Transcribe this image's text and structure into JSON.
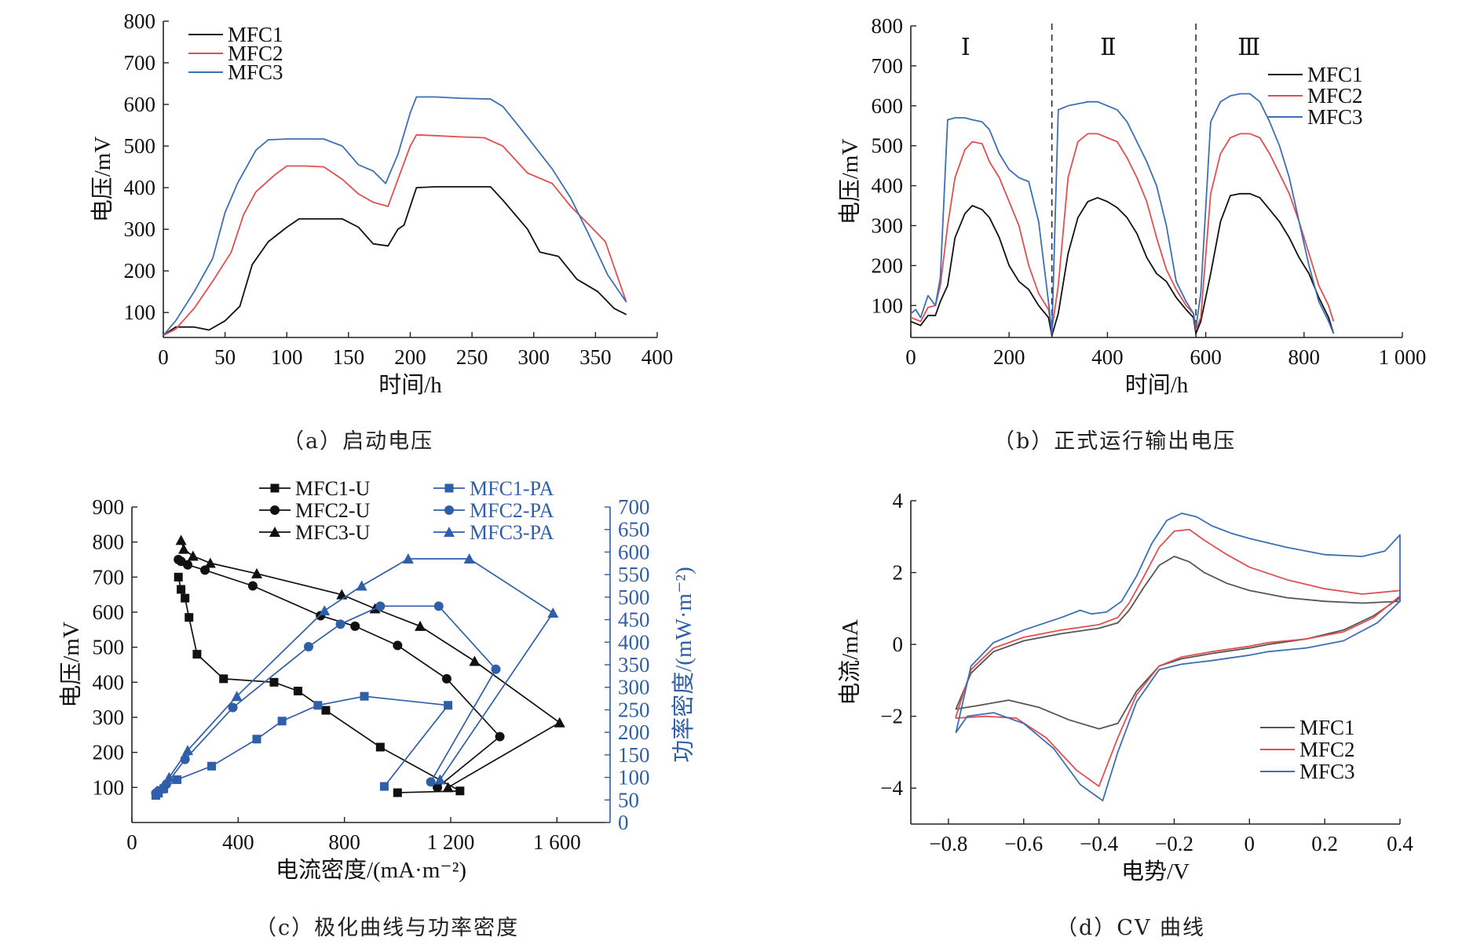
{
  "captions": {
    "a": "（a）启动电压",
    "b": "（b）正式运行输出电压",
    "c": "（c）极化曲线与功率密度",
    "d": "（d）CV 曲线"
  },
  "colors": {
    "MFC1": "#111111",
    "MFC2": "#e05050",
    "MFC3": "#3d6fb5",
    "blue_axis": "#2f5fa8",
    "cv_MFC1": "#555555"
  },
  "chart_data": [
    {
      "id": "a",
      "type": "line",
      "xlabel": "时间/h",
      "ylabel": "电压/mV",
      "xlim": [
        0,
        400
      ],
      "ylim": [
        40,
        800
      ],
      "xticks": [
        0,
        50,
        100,
        150,
        200,
        250,
        300,
        350,
        400
      ],
      "yticks": [
        100,
        200,
        300,
        400,
        500,
        600,
        700,
        800
      ],
      "legend_position": "top-left",
      "series": [
        {
          "name": "MFC1",
          "x": [
            0,
            10,
            25,
            37,
            50,
            62,
            72,
            85,
            100,
            110,
            125,
            145,
            158,
            170,
            182,
            190,
            195,
            205,
            220,
            240,
            265,
            275,
            295,
            305,
            320,
            335,
            352,
            365,
            375
          ],
          "y": [
            45,
            65,
            65,
            58,
            80,
            115,
            215,
            270,
            305,
            325,
            325,
            325,
            305,
            265,
            260,
            300,
            310,
            400,
            402,
            402,
            402,
            370,
            300,
            245,
            235,
            180,
            150,
            110,
            95
          ]
        },
        {
          "name": "MFC2",
          "x": [
            0,
            10,
            25,
            40,
            55,
            65,
            75,
            90,
            100,
            115,
            130,
            145,
            158,
            170,
            182,
            190,
            200,
            205,
            220,
            240,
            260,
            275,
            295,
            315,
            330,
            345,
            358,
            375
          ],
          "y": [
            45,
            60,
            110,
            175,
            245,
            335,
            390,
            430,
            452,
            452,
            450,
            420,
            385,
            365,
            355,
            420,
            500,
            527,
            525,
            522,
            520,
            500,
            435,
            410,
            355,
            310,
            270,
            125
          ]
        },
        {
          "name": "MFC3",
          "x": [
            0,
            10,
            25,
            40,
            50,
            60,
            75,
            85,
            100,
            115,
            130,
            145,
            158,
            170,
            180,
            190,
            200,
            205,
            220,
            240,
            265,
            275,
            290,
            315,
            330,
            345,
            360,
            375
          ],
          "y": [
            45,
            80,
            150,
            230,
            340,
            410,
            490,
            515,
            517,
            517,
            517,
            500,
            455,
            440,
            410,
            480,
            580,
            618,
            618,
            615,
            613,
            595,
            540,
            445,
            375,
            285,
            190,
            125
          ]
        }
      ]
    },
    {
      "id": "b",
      "type": "line",
      "xlabel": "时间/h",
      "ylabel": "电压/mV",
      "xlim": [
        0,
        1000
      ],
      "ylim": [
        20,
        800
      ],
      "xticks": [
        0,
        200,
        400,
        600,
        800,
        1000
      ],
      "xtick_labels": [
        "0",
        "200",
        "400",
        "600",
        "800",
        "1 000"
      ],
      "yticks": [
        100,
        200,
        300,
        400,
        500,
        600,
        700,
        800
      ],
      "phase_labels": [
        "Ⅰ",
        "Ⅱ",
        "Ⅲ"
      ],
      "phase_boundaries": [
        287,
        580
      ],
      "legend_position": "top-right",
      "series": [
        {
          "name": "MFC1",
          "x": [
            0,
            10,
            20,
            35,
            50,
            60,
            75,
            90,
            110,
            125,
            145,
            160,
            180,
            200,
            220,
            240,
            260,
            280,
            287,
            300,
            320,
            340,
            360,
            380,
            400,
            420,
            440,
            460,
            480,
            500,
            520,
            540,
            560,
            575,
            580,
            590,
            610,
            630,
            650,
            670,
            690,
            710,
            730,
            750,
            770,
            790,
            810,
            830,
            850,
            860
          ],
          "y": [
            60,
            55,
            50,
            75,
            75,
            110,
            150,
            270,
            330,
            350,
            340,
            320,
            270,
            200,
            160,
            140,
            100,
            70,
            25,
            80,
            230,
            320,
            360,
            370,
            360,
            345,
            320,
            280,
            220,
            180,
            160,
            120,
            90,
            70,
            30,
            60,
            180,
            310,
            375,
            380,
            380,
            370,
            340,
            310,
            270,
            220,
            180,
            120,
            70,
            30
          ]
        },
        {
          "name": "MFC2",
          "x": [
            0,
            10,
            20,
            35,
            50,
            60,
            75,
            90,
            110,
            125,
            145,
            160,
            180,
            200,
            220,
            240,
            260,
            280,
            287,
            300,
            320,
            340,
            360,
            380,
            400,
            420,
            440,
            460,
            480,
            500,
            520,
            540,
            560,
            575,
            580,
            590,
            610,
            630,
            650,
            670,
            690,
            710,
            730,
            750,
            770,
            790,
            810,
            830,
            850,
            860
          ],
          "y": [
            70,
            65,
            60,
            95,
            100,
            150,
            300,
            420,
            490,
            510,
            505,
            460,
            420,
            360,
            300,
            200,
            130,
            90,
            40,
            150,
            420,
            510,
            530,
            530,
            520,
            510,
            470,
            420,
            360,
            270,
            190,
            140,
            100,
            80,
            40,
            70,
            380,
            480,
            520,
            530,
            530,
            520,
            480,
            430,
            380,
            310,
            230,
            150,
            100,
            60
          ]
        },
        {
          "name": "MFC3",
          "x": [
            0,
            10,
            20,
            35,
            50,
            60,
            75,
            90,
            110,
            125,
            145,
            160,
            180,
            200,
            220,
            240,
            260,
            280,
            287,
            300,
            320,
            340,
            360,
            380,
            400,
            420,
            440,
            460,
            480,
            500,
            520,
            540,
            560,
            575,
            580,
            590,
            610,
            630,
            650,
            670,
            690,
            710,
            730,
            750,
            770,
            790,
            810,
            830,
            850,
            860
          ],
          "y": [
            80,
            90,
            70,
            125,
            100,
            170,
            565,
            570,
            570,
            565,
            560,
            540,
            480,
            440,
            420,
            410,
            310,
            110,
            30,
            590,
            600,
            605,
            610,
            610,
            600,
            590,
            560,
            510,
            460,
            400,
            300,
            160,
            110,
            80,
            45,
            130,
            560,
            610,
            625,
            630,
            630,
            610,
            560,
            500,
            420,
            310,
            200,
            110,
            60,
            30
          ]
        }
      ]
    },
    {
      "id": "c",
      "type": "scatter",
      "xlabel": "电流密度/(mA·m⁻²)",
      "ylabel": "电压/mV",
      "y2label": "功率密度/(mW·m⁻²)",
      "xlim": [
        0,
        1800
      ],
      "ylim": [
        0,
        900
      ],
      "y2lim": [
        0,
        700
      ],
      "xticks": [
        0,
        400,
        800,
        1200,
        1600
      ],
      "xtick_labels": [
        "0",
        "400",
        "800",
        "1 200",
        "1 600"
      ],
      "yticks": [
        100,
        200,
        300,
        400,
        500,
        600,
        700,
        800,
        900
      ],
      "y2ticks": [
        0,
        50,
        100,
        150,
        200,
        250,
        300,
        350,
        400,
        450,
        500,
        550,
        600,
        650,
        700
      ],
      "legend_position": "top",
      "series": [
        {
          "name": "MFC1-U",
          "axis": "left",
          "marker": "square",
          "x": [
            175,
            185,
            200,
            215,
            245,
            345,
            535,
            625,
            730,
            935,
            1235,
            1000
          ],
          "y": [
            700,
            665,
            640,
            585,
            480,
            410,
            400,
            375,
            320,
            215,
            90,
            85
          ]
        },
        {
          "name": "MFC2-U",
          "axis": "left",
          "marker": "circle",
          "x": [
            175,
            185,
            210,
            275,
            455,
            710,
            840,
            1000,
            1185,
            1385,
            1150
          ],
          "y": [
            750,
            745,
            735,
            720,
            675,
            590,
            560,
            505,
            410,
            245,
            100
          ]
        },
        {
          "name": "MFC3-U",
          "axis": "left",
          "marker": "triangle",
          "x": [
            185,
            195,
            230,
            295,
            470,
            790,
            915,
            1085,
            1290,
            1610,
            1190
          ],
          "y": [
            805,
            780,
            760,
            740,
            710,
            650,
            610,
            560,
            460,
            285,
            100
          ]
        },
        {
          "name": "MFC1-PA",
          "axis": "right",
          "marker": "square",
          "x": [
            90,
            100,
            120,
            170,
            300,
            470,
            565,
            700,
            875,
            1190,
            950
          ],
          "y": [
            60,
            65,
            75,
            95,
            125,
            185,
            225,
            260,
            280,
            260,
            80
          ]
        },
        {
          "name": "MFC2-PA",
          "axis": "right",
          "marker": "circle",
          "x": [
            90,
            100,
            130,
            200,
            380,
            665,
            785,
            935,
            1155,
            1370,
            1125
          ],
          "y": [
            65,
            70,
            85,
            140,
            255,
            390,
            440,
            480,
            480,
            340,
            90
          ]
        },
        {
          "name": "MFC3-PA",
          "axis": "right",
          "marker": "triangle",
          "x": [
            95,
            110,
            140,
            210,
            395,
            725,
            865,
            1040,
            1270,
            1585,
            1160
          ],
          "y": [
            70,
            75,
            100,
            160,
            280,
            470,
            525,
            585,
            585,
            465,
            95
          ]
        }
      ]
    },
    {
      "id": "d",
      "type": "line",
      "xlabel": "电势/V",
      "ylabel": "电流/mA",
      "xlim": [
        -0.9,
        0.4
      ],
      "ylim": [
        -5,
        4
      ],
      "xticks": [
        -0.8,
        -0.6,
        -0.4,
        -0.2,
        0,
        0.2,
        0.4
      ],
      "xtick_labels": [
        "−0.8",
        "−0.6",
        "−0.4",
        "−0.2",
        "0",
        "0.2",
        "0.4"
      ],
      "yticks": [
        -4,
        -2,
        0,
        2,
        4
      ],
      "ytick_labels": [
        "−4",
        "−2",
        "0",
        "2",
        "4"
      ],
      "legend_position": "bottom-right",
      "series": [
        {
          "name": "MFC1",
          "x": [
            -0.78,
            -0.74,
            -0.68,
            -0.6,
            -0.5,
            -0.4,
            -0.35,
            -0.32,
            -0.28,
            -0.24,
            -0.2,
            -0.16,
            -0.12,
            -0.06,
            0,
            0.1,
            0.2,
            0.3,
            0.4,
            0.4,
            0.33,
            0.25,
            0.15,
            0.05,
            0,
            -0.1,
            -0.18,
            -0.24,
            -0.3,
            -0.35,
            -0.4,
            -0.48,
            -0.56,
            -0.64,
            -0.72,
            -0.78
          ],
          "y": [
            -1.8,
            -0.8,
            -0.2,
            0.1,
            0.3,
            0.45,
            0.6,
            0.95,
            1.6,
            2.2,
            2.45,
            2.3,
            2.0,
            1.7,
            1.5,
            1.3,
            1.2,
            1.15,
            1.2,
            1.3,
            0.8,
            0.4,
            0.15,
            0.0,
            -0.1,
            -0.25,
            -0.4,
            -0.6,
            -1.3,
            -2.2,
            -2.35,
            -2.1,
            -1.75,
            -1.55,
            -1.7,
            -1.8
          ]
        },
        {
          "name": "MFC2",
          "x": [
            -0.78,
            -0.74,
            -0.68,
            -0.6,
            -0.5,
            -0.4,
            -0.35,
            -0.32,
            -0.28,
            -0.24,
            -0.2,
            -0.16,
            -0.12,
            -0.06,
            0,
            0.1,
            0.2,
            0.3,
            0.4,
            0.4,
            0.33,
            0.25,
            0.15,
            0.05,
            0,
            -0.1,
            -0.18,
            -0.24,
            -0.3,
            -0.35,
            -0.4,
            -0.46,
            -0.54,
            -0.62,
            -0.7,
            -0.78
          ],
          "y": [
            -2.0,
            -0.7,
            -0.1,
            0.2,
            0.4,
            0.55,
            0.75,
            1.15,
            1.9,
            2.7,
            3.15,
            3.2,
            2.9,
            2.5,
            2.15,
            1.8,
            1.55,
            1.4,
            1.5,
            1.35,
            0.75,
            0.35,
            0.15,
            0.05,
            -0.05,
            -0.2,
            -0.35,
            -0.6,
            -1.4,
            -2.6,
            -3.95,
            -3.5,
            -2.6,
            -2.05,
            -2.0,
            -2.05
          ]
        },
        {
          "name": "MFC3",
          "x": [
            -0.78,
            -0.74,
            -0.68,
            -0.6,
            -0.5,
            -0.45,
            -0.42,
            -0.38,
            -0.34,
            -0.3,
            -0.26,
            -0.22,
            -0.18,
            -0.14,
            -0.1,
            -0.05,
            0,
            0.1,
            0.2,
            0.3,
            0.36,
            0.4,
            0.4,
            0.34,
            0.25,
            0.15,
            0.05,
            0,
            -0.1,
            -0.18,
            -0.24,
            -0.3,
            -0.35,
            -0.39,
            -0.45,
            -0.52,
            -0.6,
            -0.68,
            -0.75,
            -0.78
          ],
          "y": [
            -2.45,
            -0.6,
            0.05,
            0.4,
            0.75,
            0.95,
            0.85,
            0.9,
            1.2,
            1.9,
            2.8,
            3.45,
            3.65,
            3.55,
            3.3,
            3.1,
            2.95,
            2.7,
            2.5,
            2.45,
            2.6,
            3.05,
            1.2,
            0.6,
            0.1,
            -0.1,
            -0.2,
            -0.3,
            -0.45,
            -0.55,
            -0.7,
            -1.6,
            -3.0,
            -4.35,
            -3.9,
            -2.9,
            -2.2,
            -1.9,
            -2.0,
            -2.45
          ]
        }
      ]
    }
  ]
}
